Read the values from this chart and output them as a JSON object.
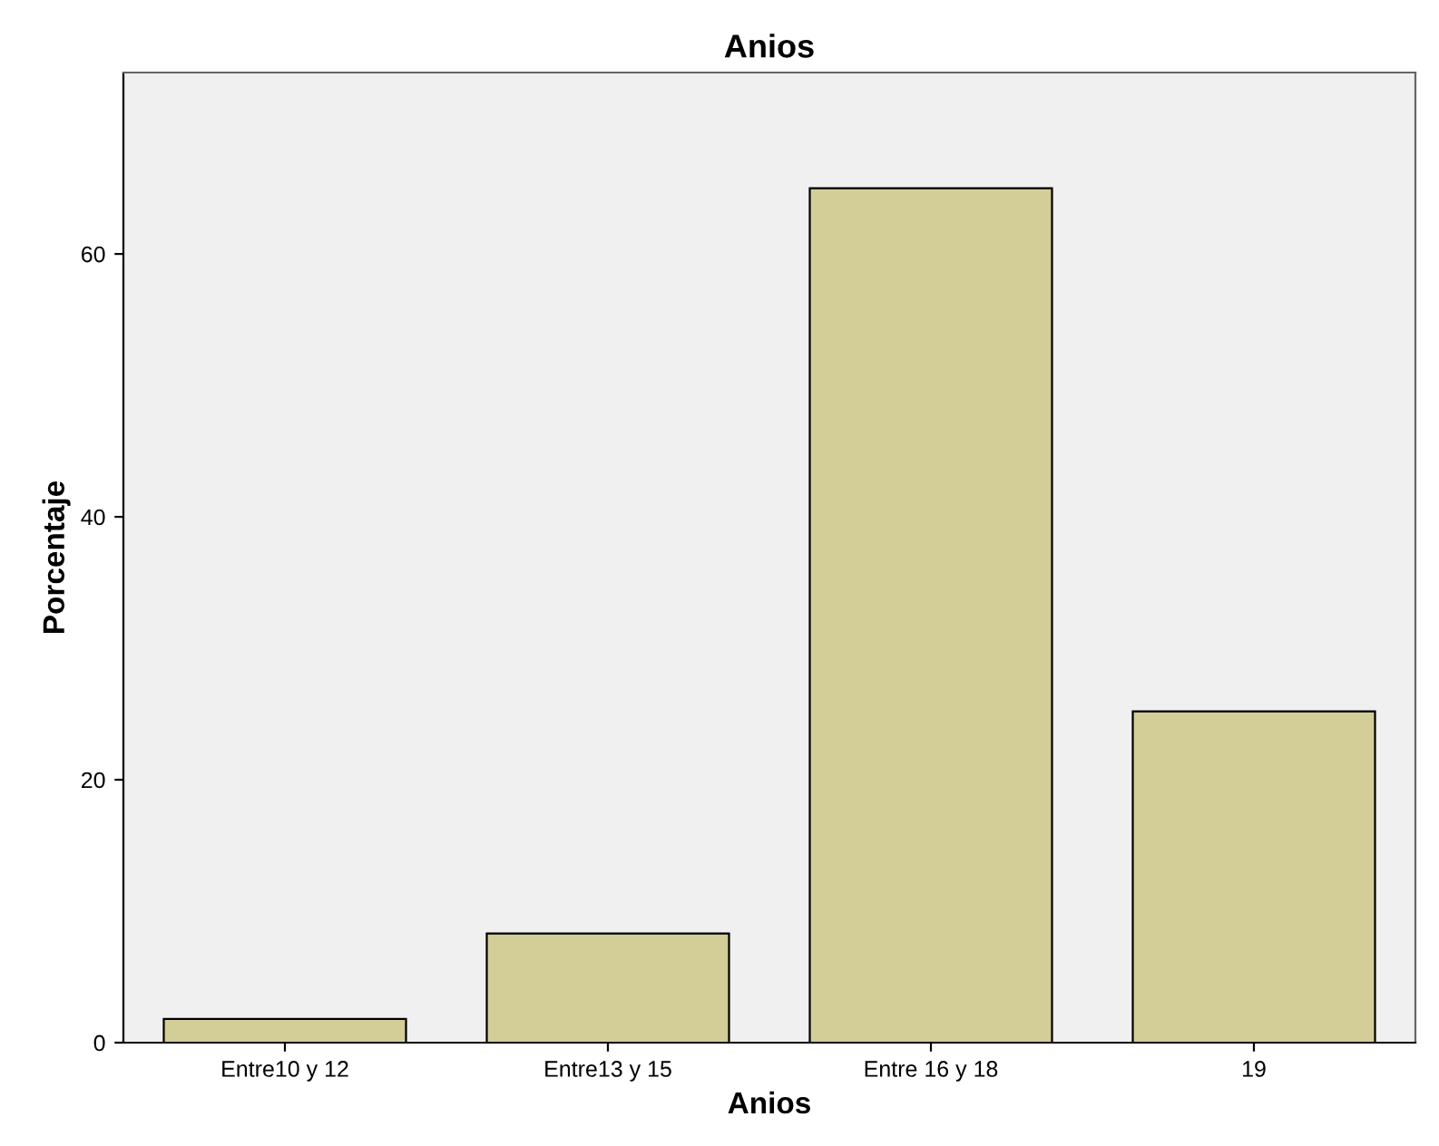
{
  "chart_data": {
    "type": "bar",
    "title": "Anios",
    "xlabel": "Anios",
    "ylabel": "Porcentaje",
    "categories": [
      "Entre10 y 12",
      "Entre13 y 15",
      "Entre 16 y 18",
      "19"
    ],
    "values": [
      1.8,
      8.3,
      65.0,
      25.2
    ],
    "color": "#d3ce97",
    "ylim": [
      0,
      73.8
    ],
    "yticks": [
      0,
      20,
      40,
      60
    ],
    "grid": false
  }
}
